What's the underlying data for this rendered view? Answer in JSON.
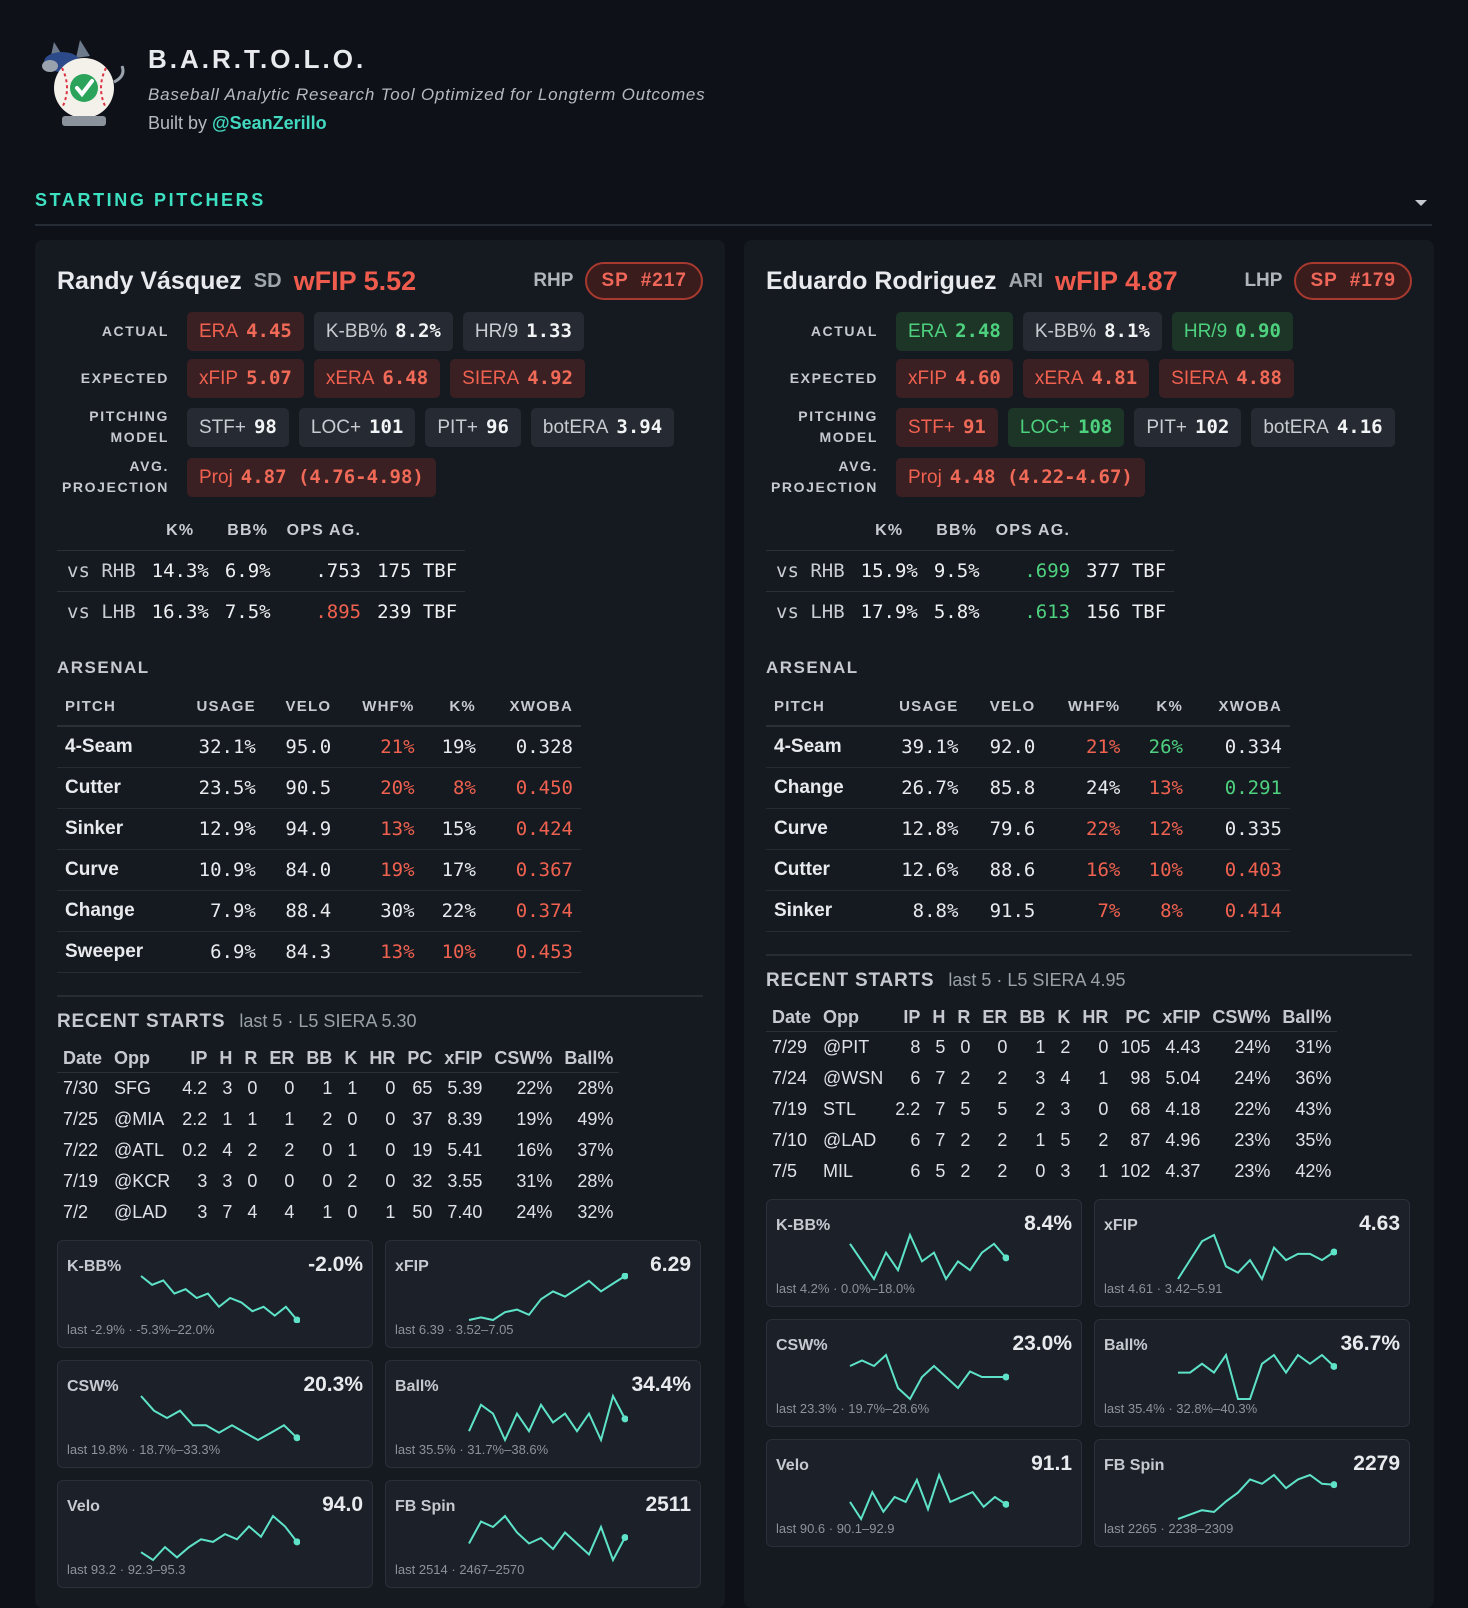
{
  "header": {
    "title": "B.A.R.T.O.L.O.",
    "subtitle": "Baseball Analytic Research Tool Optimized for Longterm Outcomes",
    "built_by": "Built by",
    "handle": "@SeanZerillo"
  },
  "section": {
    "title": "STARTING PITCHERS"
  },
  "pitchers": [
    {
      "name": "Randy Vásquez",
      "team": "SD",
      "wfip_key": "wFIP",
      "wfip": "5.52",
      "hand": "RHP",
      "rank": "SP #217",
      "chip_rows": [
        {
          "label": "ACTUAL",
          "chips": [
            {
              "key": "ERA",
              "value": "4.45",
              "tone": "r"
            },
            {
              "key": "K-BB%",
              "value": "8.2%",
              "tone": "n"
            },
            {
              "key": "HR/9",
              "value": "1.33",
              "tone": "n"
            }
          ]
        },
        {
          "label": "EXPECTED",
          "chips": [
            {
              "key": "xFIP",
              "value": "5.07",
              "tone": "r"
            },
            {
              "key": "xERA",
              "value": "6.48",
              "tone": "r"
            },
            {
              "key": "SIERA",
              "value": "4.92",
              "tone": "r"
            }
          ]
        },
        {
          "label": "PITCHING MODEL",
          "chips": [
            {
              "key": "STF+",
              "value": "98",
              "tone": "n"
            },
            {
              "key": "LOC+",
              "value": "101",
              "tone": "n"
            },
            {
              "key": "PIT+",
              "value": "96",
              "tone": "n"
            },
            {
              "key": "botERA",
              "value": "3.94",
              "tone": "n"
            }
          ]
        },
        {
          "label": "AVG. PROJECTION",
          "chips": [
            {
              "key": "Proj",
              "value": "4.87 (4.76-4.98)",
              "tone": "r"
            }
          ]
        }
      ],
      "splits": {
        "headers": [
          "K%",
          "BB%",
          "OPS AG."
        ],
        "rows": [
          {
            "cells": [
              "vs RHB",
              "14.3%",
              "6.9%",
              ".753",
              "175 TBF"
            ],
            "tones": "nnnnn"
          },
          {
            "cells": [
              "vs LHB",
              "16.3%",
              "7.5%",
              ".895",
              "239 TBF"
            ],
            "tones": "nnnrn"
          }
        ]
      },
      "arsenal": {
        "title": "ARSENAL",
        "headers": [
          "PITCH",
          "USAGE",
          "VELO",
          "WHF%",
          "K%",
          "XWOBA"
        ],
        "rows": [
          {
            "cells": [
              "4-Seam",
              "32.1%",
              "95.0",
              "21%",
              "19%",
              "0.328"
            ],
            "tones": "nnnrnn"
          },
          {
            "cells": [
              "Cutter",
              "23.5%",
              "90.5",
              "20%",
              "8%",
              "0.450"
            ],
            "tones": "nnnrrr"
          },
          {
            "cells": [
              "Sinker",
              "12.9%",
              "94.9",
              "13%",
              "15%",
              "0.424"
            ],
            "tones": "nnnrnr"
          },
          {
            "cells": [
              "Curve",
              "10.9%",
              "84.0",
              "19%",
              "17%",
              "0.367"
            ],
            "tones": "nnnrnr"
          },
          {
            "cells": [
              "Change",
              "7.9%",
              "88.4",
              "30%",
              "22%",
              "0.374"
            ],
            "tones": "nnnnnr"
          },
          {
            "cells": [
              "Sweeper",
              "6.9%",
              "84.3",
              "13%",
              "10%",
              "0.453"
            ],
            "tones": "nnnrrr"
          }
        ]
      },
      "recent": {
        "title": "RECENT STARTS",
        "note": "last 5 · L5 SIERA 5.30",
        "headers": [
          "Date",
          "Opp",
          "IP",
          "H",
          "R",
          "ER",
          "BB",
          "K",
          "HR",
          "PC",
          "xFIP",
          "CSW%",
          "Ball%"
        ],
        "rows": [
          [
            "7/30",
            "SFG",
            "4.2",
            "3",
            "0",
            "0",
            "1",
            "1",
            "0",
            "65",
            "5.39",
            "22%",
            "28%"
          ],
          [
            "7/25",
            "@MIA",
            "2.2",
            "1",
            "1",
            "1",
            "2",
            "0",
            "0",
            "37",
            "8.39",
            "19%",
            "49%"
          ],
          [
            "7/22",
            "@ATL",
            "0.2",
            "4",
            "2",
            "2",
            "0",
            "1",
            "0",
            "19",
            "5.41",
            "16%",
            "37%"
          ],
          [
            "7/19",
            "@KCR",
            "3",
            "3",
            "0",
            "0",
            "0",
            "2",
            "0",
            "32",
            "3.55",
            "31%",
            "28%"
          ],
          [
            "7/2",
            "@LAD",
            "3",
            "7",
            "4",
            "4",
            "1",
            "0",
            "1",
            "50",
            "7.40",
            "24%",
            "32%"
          ]
        ]
      },
      "sparks": [
        {
          "label": "K-BB%",
          "value": "-2.0%",
          "note": "last -2.9% · -5.3%–22.0%",
          "points": [
            8,
            6,
            7,
            4,
            5,
            3,
            4,
            1,
            3,
            2,
            0,
            1,
            -1,
            1,
            -2
          ]
        },
        {
          "label": "xFIP",
          "value": "6.29",
          "note": "last 6.39 · 3.52–7.05",
          "points": [
            4.6,
            4.7,
            4.6,
            4.9,
            5.0,
            4.8,
            5.4,
            5.7,
            5.5,
            5.8,
            6.1,
            5.7,
            6.0,
            6.29
          ]
        },
        {
          "label": "CSW%",
          "value": "20.3%",
          "note": "last 19.8% · 18.7%–33.3%",
          "points": [
            26,
            24,
            23,
            24,
            22,
            22,
            21,
            22,
            21,
            20,
            21,
            22,
            20.3
          ]
        },
        {
          "label": "Ball%",
          "value": "34.4%",
          "note": "last 35.5% · 31.7%–38.6%",
          "points": [
            33,
            36,
            35,
            32,
            35,
            33,
            36,
            34,
            35,
            33,
            35,
            32,
            37,
            34.4
          ]
        },
        {
          "label": "Velo",
          "value": "94.0",
          "note": "last 93.2 · 92.3–95.3",
          "points": [
            93.6,
            93.3,
            93.8,
            93.4,
            93.8,
            94.1,
            94.0,
            94.3,
            94.1,
            94.6,
            94.2,
            95.0,
            94.6,
            94.0
          ]
        },
        {
          "label": "FB Spin",
          "value": "2511",
          "note": "last 2514 · 2467–2570",
          "points": [
            2500,
            2540,
            2530,
            2550,
            2520,
            2500,
            2510,
            2490,
            2520,
            2500,
            2480,
            2530,
            2470,
            2511
          ]
        }
      ]
    },
    {
      "name": "Eduardo Rodriguez",
      "team": "ARI",
      "wfip_key": "wFIP",
      "wfip": "4.87",
      "hand": "LHP",
      "rank": "SP #179",
      "chip_rows": [
        {
          "label": "ACTUAL",
          "chips": [
            {
              "key": "ERA",
              "value": "2.48",
              "tone": "g"
            },
            {
              "key": "K-BB%",
              "value": "8.1%",
              "tone": "n"
            },
            {
              "key": "HR/9",
              "value": "0.90",
              "tone": "g"
            }
          ]
        },
        {
          "label": "EXPECTED",
          "chips": [
            {
              "key": "xFIP",
              "value": "4.60",
              "tone": "r"
            },
            {
              "key": "xERA",
              "value": "4.81",
              "tone": "r"
            },
            {
              "key": "SIERA",
              "value": "4.88",
              "tone": "r"
            }
          ]
        },
        {
          "label": "PITCHING MODEL",
          "chips": [
            {
              "key": "STF+",
              "value": "91",
              "tone": "r"
            },
            {
              "key": "LOC+",
              "value": "108",
              "tone": "g"
            },
            {
              "key": "PIT+",
              "value": "102",
              "tone": "n"
            },
            {
              "key": "botERA",
              "value": "4.16",
              "tone": "n"
            }
          ]
        },
        {
          "label": "AVG. PROJECTION",
          "chips": [
            {
              "key": "Proj",
              "value": "4.48 (4.22-4.67)",
              "tone": "r"
            }
          ]
        }
      ],
      "splits": {
        "headers": [
          "K%",
          "BB%",
          "OPS AG."
        ],
        "rows": [
          {
            "cells": [
              "vs RHB",
              "15.9%",
              "9.5%",
              ".699",
              "377 TBF"
            ],
            "tones": "nnngn"
          },
          {
            "cells": [
              "vs LHB",
              "17.9%",
              "5.8%",
              ".613",
              "156 TBF"
            ],
            "tones": "nnngn"
          }
        ]
      },
      "arsenal": {
        "title": "ARSENAL",
        "headers": [
          "PITCH",
          "USAGE",
          "VELO",
          "WHF%",
          "K%",
          "XWOBA"
        ],
        "rows": [
          {
            "cells": [
              "4-Seam",
              "39.1%",
              "92.0",
              "21%",
              "26%",
              "0.334"
            ],
            "tones": "nnnrgn"
          },
          {
            "cells": [
              "Change",
              "26.7%",
              "85.8",
              "24%",
              "13%",
              "0.291"
            ],
            "tones": "nnnnrg"
          },
          {
            "cells": [
              "Curve",
              "12.8%",
              "79.6",
              "22%",
              "12%",
              "0.335"
            ],
            "tones": "nnnrrn"
          },
          {
            "cells": [
              "Cutter",
              "12.6%",
              "88.6",
              "16%",
              "10%",
              "0.403"
            ],
            "tones": "nnnrrr"
          },
          {
            "cells": [
              "Sinker",
              "8.8%",
              "91.5",
              "7%",
              "8%",
              "0.414"
            ],
            "tones": "nnnrrr"
          }
        ]
      },
      "recent": {
        "title": "RECENT STARTS",
        "note": "last 5 · L5 SIERA 4.95",
        "headers": [
          "Date",
          "Opp",
          "IP",
          "H",
          "R",
          "ER",
          "BB",
          "K",
          "HR",
          "PC",
          "xFIP",
          "CSW%",
          "Ball%"
        ],
        "rows": [
          [
            "7/29",
            "@PIT",
            "8",
            "5",
            "0",
            "0",
            "1",
            "2",
            "0",
            "105",
            "4.43",
            "24%",
            "31%"
          ],
          [
            "7/24",
            "@WSN",
            "6",
            "7",
            "2",
            "2",
            "3",
            "4",
            "1",
            "98",
            "5.04",
            "24%",
            "36%"
          ],
          [
            "7/19",
            "STL",
            "2.2",
            "7",
            "5",
            "5",
            "2",
            "3",
            "0",
            "68",
            "4.18",
            "22%",
            "43%"
          ],
          [
            "7/10",
            "@LAD",
            "6",
            "7",
            "2",
            "2",
            "1",
            "5",
            "2",
            "87",
            "4.96",
            "23%",
            "35%"
          ],
          [
            "7/5",
            "MIL",
            "6",
            "5",
            "2",
            "2",
            "0",
            "3",
            "1",
            "102",
            "4.37",
            "23%",
            "42%"
          ]
        ]
      },
      "sparks": [
        {
          "label": "K-BB%",
          "value": "8.4%",
          "note": "last 4.2% · 0.0%–18.0%",
          "points": [
            10,
            8,
            6,
            9,
            7,
            11,
            8,
            9,
            6,
            8,
            7,
            9,
            10,
            8.4
          ]
        },
        {
          "label": "xFIP",
          "value": "4.63",
          "note": "last 4.61 · 3.42–5.91",
          "points": [
            4.2,
            4.5,
            4.8,
            4.9,
            4.4,
            4.3,
            4.5,
            4.2,
            4.7,
            4.5,
            4.6,
            4.6,
            4.5,
            4.63
          ]
        },
        {
          "label": "CSW%",
          "value": "23.0%",
          "note": "last 23.3% · 19.7%–28.6%",
          "points": [
            24,
            24.5,
            24,
            25,
            22,
            21,
            23,
            24,
            23,
            22,
            23.5,
            23,
            23,
            23.0
          ]
        },
        {
          "label": "Ball%",
          "value": "36.7%",
          "note": "last 35.4% · 32.8%–40.3%",
          "points": [
            36,
            36,
            37,
            36,
            38,
            33,
            33,
            37,
            38,
            36,
            38,
            37,
            38,
            36.7
          ]
        },
        {
          "label": "Velo",
          "value": "91.1",
          "note": "last 90.6 · 90.1–92.9",
          "points": [
            91.2,
            90.5,
            91.6,
            90.8,
            91.4,
            91.2,
            92.1,
            90.9,
            92.3,
            91.2,
            91.4,
            91.6,
            91.0,
            91.4,
            91.1
          ]
        },
        {
          "label": "FB Spin",
          "value": "2279",
          "note": "last 2265 · 2238–2309",
          "points": [
            2240,
            2245,
            2250,
            2248,
            2260,
            2270,
            2285,
            2280,
            2290,
            2275,
            2285,
            2290,
            2280,
            2279
          ]
        }
      ]
    }
  ]
}
